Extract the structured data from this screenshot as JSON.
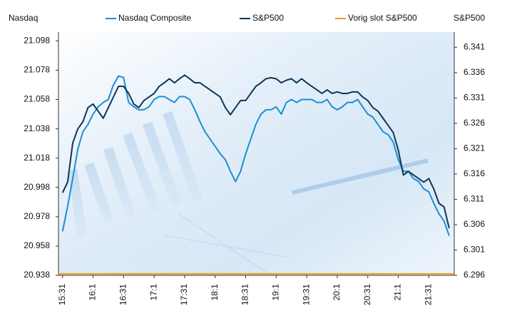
{
  "chart_data": {
    "type": "line",
    "y_axis_title": "Nasdaq",
    "y2_axis_title": "S&P500",
    "x": [
      0,
      5,
      10,
      15,
      20,
      25,
      30,
      35,
      40,
      45,
      50,
      55,
      60,
      65,
      70,
      75,
      80,
      85,
      90,
      95,
      100,
      105,
      110,
      115,
      120,
      125,
      130,
      135,
      140,
      145,
      150,
      155,
      160,
      165,
      170,
      175,
      180,
      185,
      190,
      195,
      200,
      205,
      210,
      215,
      220,
      225,
      230,
      235,
      240,
      245,
      250,
      255,
      260,
      265,
      270,
      275,
      280,
      285,
      290,
      295,
      300,
      305,
      310,
      315,
      320,
      325,
      330,
      335,
      340,
      345,
      350,
      355,
      360,
      365,
      370,
      375,
      380
    ],
    "xlim": [
      -4,
      385
    ],
    "xticks": [
      {
        "value": 0,
        "label": "15:31"
      },
      {
        "value": 30,
        "label": "16:1"
      },
      {
        "value": 60,
        "label": "16:31"
      },
      {
        "value": 90,
        "label": "17:1"
      },
      {
        "value": 120,
        "label": "17:31"
      },
      {
        "value": 150,
        "label": "18:1"
      },
      {
        "value": 180,
        "label": "18:31"
      },
      {
        "value": 210,
        "label": "19:1"
      },
      {
        "value": 240,
        "label": "19:31"
      },
      {
        "value": 270,
        "label": "20:1"
      },
      {
        "value": 300,
        "label": "20:31"
      },
      {
        "value": 330,
        "label": "21:1"
      },
      {
        "value": 360,
        "label": "21:31"
      }
    ],
    "ylim": [
      20.938,
      21.104
    ],
    "yticks": [
      20.938,
      20.958,
      20.978,
      20.998,
      21.018,
      21.038,
      21.058,
      21.078,
      21.098
    ],
    "y2lim": [
      6.296,
      6.344
    ],
    "y2ticks": [
      6.296,
      6.301,
      6.306,
      6.311,
      6.316,
      6.321,
      6.326,
      6.331,
      6.336,
      6.341
    ],
    "series": [
      {
        "name": "Nasdaq Composite",
        "color": "#1a8fd1",
        "axis": "y",
        "values": [
          20.968,
          20.985,
          21.004,
          21.024,
          21.036,
          21.041,
          21.048,
          21.053,
          21.056,
          21.058,
          21.068,
          21.074,
          21.073,
          21.056,
          21.053,
          21.051,
          21.051,
          21.053,
          21.058,
          21.06,
          21.06,
          21.058,
          21.056,
          21.06,
          21.06,
          21.058,
          21.051,
          21.043,
          21.036,
          21.031,
          21.026,
          21.021,
          21.017,
          21.009,
          21.002,
          21.009,
          21.021,
          21.031,
          21.041,
          21.048,
          21.051,
          21.051,
          21.053,
          21.048,
          21.056,
          21.058,
          21.056,
          21.058,
          21.058,
          21.058,
          21.056,
          21.056,
          21.058,
          21.053,
          21.051,
          21.053,
          21.056,
          21.056,
          21.058,
          21.053,
          21.048,
          21.046,
          21.041,
          21.036,
          21.034,
          21.029,
          21.017,
          21.009,
          21.009,
          21.004,
          21.002,
          20.997,
          20.995,
          20.987,
          20.98,
          20.975,
          20.965
        ]
      },
      {
        "name": "S&P500",
        "color": "#0d3656",
        "axis": "y2",
        "values": [
          6.3123,
          6.3144,
          6.3221,
          6.3249,
          6.3263,
          6.3291,
          6.3298,
          6.3284,
          6.327,
          6.3291,
          6.3312,
          6.3333,
          6.3333,
          6.3319,
          6.3298,
          6.3291,
          6.3305,
          6.3312,
          6.3319,
          6.3333,
          6.334,
          6.3348,
          6.334,
          6.3348,
          6.3355,
          6.3348,
          6.334,
          6.334,
          6.3333,
          6.3326,
          6.3319,
          6.3312,
          6.3291,
          6.3277,
          6.3291,
          6.3305,
          6.3305,
          6.3319,
          6.3333,
          6.334,
          6.3348,
          6.335,
          6.3348,
          6.334,
          6.3345,
          6.3348,
          6.334,
          6.3348,
          6.334,
          6.3333,
          6.3326,
          6.3319,
          6.3326,
          6.3319,
          6.3322,
          6.3319,
          6.3319,
          6.3322,
          6.3322,
          6.3312,
          6.3305,
          6.3291,
          6.3284,
          6.327,
          6.3256,
          6.3242,
          6.3207,
          6.3158,
          6.3165,
          6.3158,
          6.3151,
          6.3144,
          6.3151,
          6.313,
          6.3102,
          6.3095,
          6.3053
        ]
      }
    ],
    "reference_lines": [
      {
        "name": "Vorig slot S&P500",
        "color": "#f39c12",
        "axis": "y2",
        "value": 6.2963
      }
    ]
  }
}
